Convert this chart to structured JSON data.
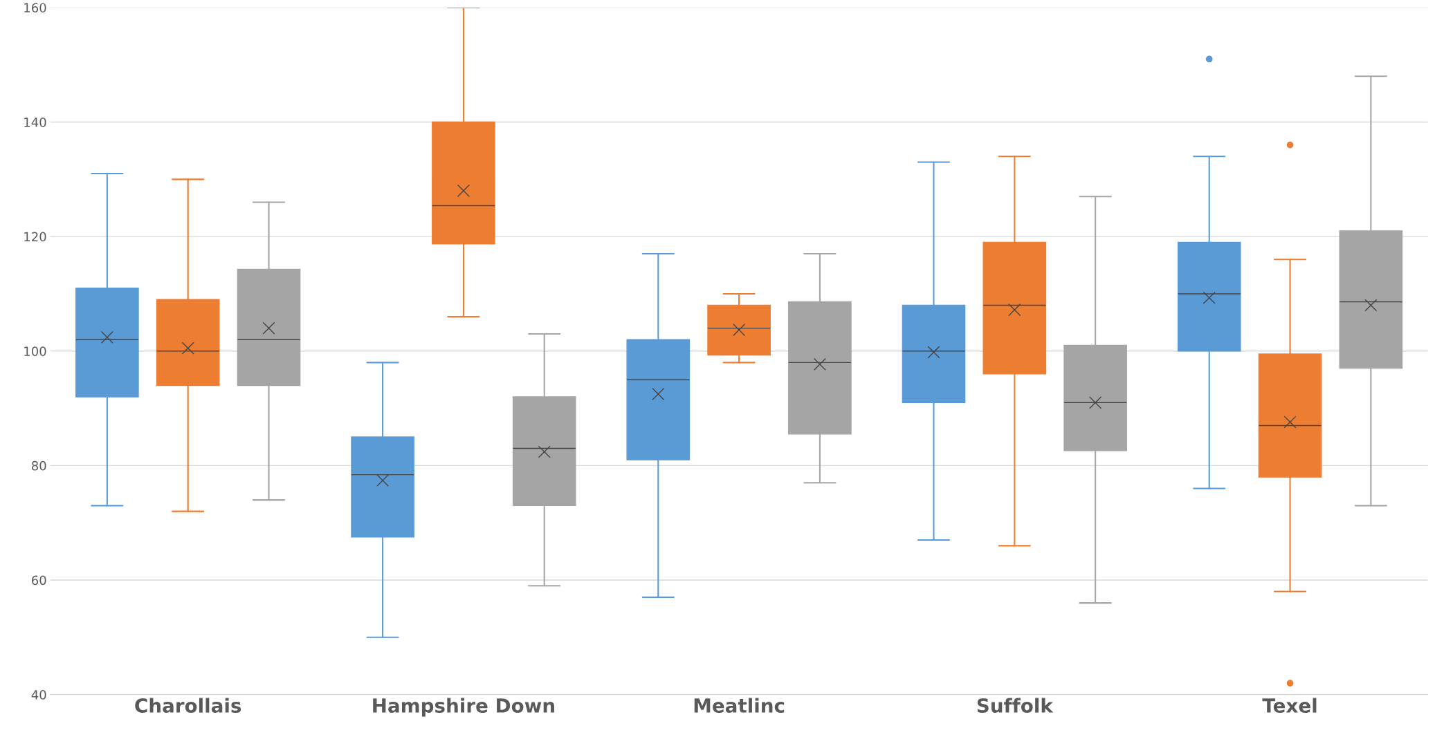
{
  "chart_data": {
    "type": "box",
    "categories": [
      "Charollais",
      "Hampshire Down",
      "Meatlinc",
      "Suffolk",
      "Texel"
    ],
    "ylim": [
      40,
      160
    ],
    "yticks": [
      40,
      60,
      80,
      100,
      120,
      140,
      160
    ],
    "grid": "y",
    "series": [
      {
        "color": "#5b9bd5",
        "boxes": [
          {
            "low": 73,
            "q1": 92,
            "median": 102,
            "q3": 111,
            "high": 131,
            "mean": 102.4
          },
          {
            "low": 50,
            "q1": 67.5,
            "median": 78.4,
            "q3": 85,
            "high": 98,
            "mean": 77.4
          },
          {
            "low": 57,
            "q1": 81,
            "median": 95,
            "q3": 102,
            "high": 117,
            "mean": 92.5
          },
          {
            "low": 67,
            "q1": 91,
            "median": 100,
            "q3": 108,
            "high": 133,
            "mean": 99.8
          },
          {
            "low": 76,
            "q1": 100,
            "median": 110,
            "q3": 119,
            "high": 134,
            "mean": 109.3,
            "outliers": [
              151
            ]
          }
        ]
      },
      {
        "color": "#ed7d31",
        "boxes": [
          {
            "low": 72,
            "q1": 94,
            "median": 100,
            "q3": 109,
            "high": 130,
            "mean": 100.5
          },
          {
            "low": 106,
            "q1": 118.7,
            "median": 125.4,
            "q3": 140,
            "high": 160,
            "mean": 128
          },
          {
            "low": 98,
            "q1": 99.3,
            "median": 104,
            "q3": 108,
            "high": 110,
            "mean": 103.7
          },
          {
            "low": 66,
            "q1": 96,
            "median": 108,
            "q3": 119,
            "high": 134,
            "mean": 107.2
          },
          {
            "low": 58,
            "q1": 78,
            "median": 87,
            "q3": 99.5,
            "high": 116,
            "mean": 87.6,
            "outliers": [
              136,
              42
            ]
          }
        ]
      },
      {
        "color": "#a5a5a5",
        "boxes": [
          {
            "low": 74,
            "q1": 94,
            "median": 102,
            "q3": 114.3,
            "high": 126,
            "mean": 104
          },
          {
            "low": 59,
            "q1": 73,
            "median": 83,
            "q3": 92,
            "high": 103,
            "mean": 82.4
          },
          {
            "low": 77,
            "q1": 85.5,
            "median": 98,
            "q3": 108.6,
            "high": 117,
            "mean": 97.7
          },
          {
            "low": 56,
            "q1": 82.6,
            "median": 91,
            "q3": 101,
            "high": 127,
            "mean": 91
          },
          {
            "low": 73,
            "q1": 97,
            "median": 108.6,
            "q3": 121,
            "high": 148,
            "mean": 108
          }
        ]
      }
    ]
  }
}
